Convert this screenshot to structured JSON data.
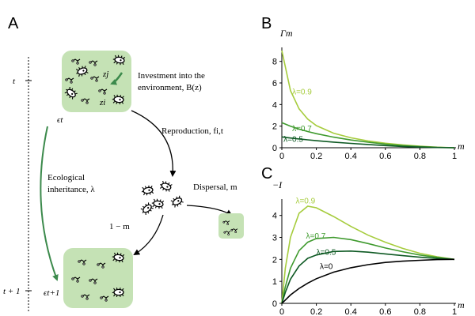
{
  "panels": {
    "a": "A",
    "b": "B",
    "c": "C"
  },
  "schematic": {
    "time_t": "t",
    "time_t1": "t + 1",
    "eps_t": "ϵt",
    "eps_t1": "ϵt+1",
    "zj": "zj",
    "zi": "zi",
    "investment_line1": "Investment into the",
    "investment_line2": "environment, B(z)",
    "reproduction": "Reproduction, fi,t",
    "dispersal": "Dispersal, m",
    "one_minus_m": "1 − m",
    "eco_line1": "Ecological",
    "eco_line2": "inheritance, λ"
  },
  "colors": {
    "lambda_0": "#000000",
    "lambda_0_5": "#0f5a24",
    "lambda_0_7": "#3f9a2e",
    "lambda_0_9": "#a6cc3d",
    "patch_fill": "#c5e2b5",
    "arrow_green": "#3c8a4c"
  },
  "chart_data": [
    {
      "type": "line",
      "panel": "B",
      "ylabel": "Γm",
      "xlabel": "m",
      "xlim": [
        0,
        1
      ],
      "ylim": [
        0,
        9
      ],
      "x_ticks": [
        "0",
        "0.2",
        "0.4",
        "0.6",
        "0.8",
        "1"
      ],
      "y_ticks": [
        "0",
        "2",
        "4",
        "6",
        "8"
      ],
      "x": [
        0,
        0.05,
        0.1,
        0.15,
        0.2,
        0.3,
        0.4,
        0.5,
        0.6,
        0.7,
        0.8,
        0.9,
        1.0
      ],
      "series": [
        {
          "name": "λ=0.9",
          "color": "#a6cc3d",
          "values": [
            9.0,
            5.3,
            3.6,
            2.65,
            2.05,
            1.35,
            0.92,
            0.63,
            0.42,
            0.26,
            0.14,
            0.05,
            0
          ]
        },
        {
          "name": "λ=0.7",
          "color": "#3f9a2e",
          "values": [
            2.33,
            2.0,
            1.73,
            1.5,
            1.3,
            0.98,
            0.72,
            0.51,
            0.34,
            0.2,
            0.1,
            0.03,
            0
          ]
        },
        {
          "name": "λ=0.5",
          "color": "#0f5a24",
          "values": [
            1.0,
            0.9,
            0.81,
            0.73,
            0.65,
            0.52,
            0.4,
            0.3,
            0.2,
            0.12,
            0.06,
            0.02,
            0
          ]
        }
      ]
    },
    {
      "type": "line",
      "panel": "C",
      "ylabel": "−I",
      "xlabel": "m",
      "xlim": [
        0,
        1
      ],
      "ylim": [
        0,
        4.6
      ],
      "x_ticks": [
        "0",
        "0.2",
        "0.4",
        "0.6",
        "0.8",
        "1"
      ],
      "y_ticks": [
        "0",
        "1",
        "2",
        "3",
        "4"
      ],
      "x": [
        0,
        0.02,
        0.05,
        0.1,
        0.15,
        0.2,
        0.3,
        0.4,
        0.5,
        0.6,
        0.7,
        0.8,
        0.9,
        1.0
      ],
      "series": [
        {
          "name": "λ=0.9",
          "color": "#a6cc3d",
          "values": [
            0,
            1.6,
            3.0,
            4.1,
            4.42,
            4.35,
            3.95,
            3.5,
            3.1,
            2.78,
            2.5,
            2.28,
            2.12,
            2.0
          ]
        },
        {
          "name": "λ=0.7",
          "color": "#3f9a2e",
          "values": [
            0,
            0.75,
            1.6,
            2.4,
            2.78,
            2.95,
            3.0,
            2.9,
            2.72,
            2.52,
            2.35,
            2.2,
            2.09,
            2.0
          ]
        },
        {
          "name": "λ=0.5",
          "color": "#0f5a24",
          "values": [
            0,
            0.5,
            1.1,
            1.7,
            2.05,
            2.2,
            2.36,
            2.38,
            2.33,
            2.25,
            2.17,
            2.1,
            2.04,
            2.0
          ]
        },
        {
          "name": "λ=0",
          "color": "#000000",
          "values": [
            0,
            0.15,
            0.38,
            0.68,
            0.92,
            1.12,
            1.42,
            1.62,
            1.76,
            1.86,
            1.92,
            1.96,
            1.99,
            2.0
          ]
        }
      ]
    }
  ]
}
